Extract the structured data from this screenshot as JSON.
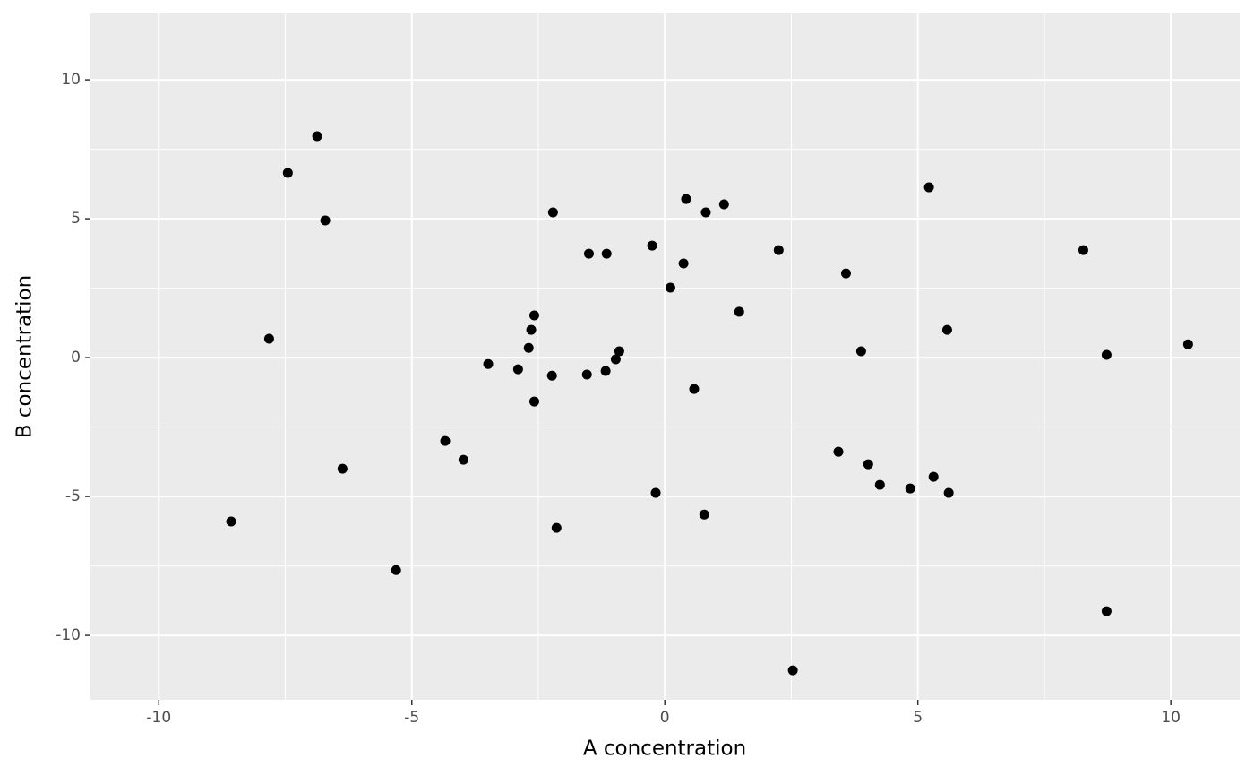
{
  "chart_data": {
    "type": "scatter",
    "x_label": "A concentration",
    "y_label": "B concentration",
    "x": [
      -6.87,
      -7.45,
      -6.71,
      -7.82,
      -8.57,
      -6.37,
      -5.31,
      -4.34,
      -3.98,
      -3.49,
      -2.9,
      -2.69,
      -2.64,
      -2.58,
      -2.58,
      -2.21,
      -2.23,
      -2.14,
      -1.54,
      -1.5,
      -1.15,
      -1.17,
      -0.97,
      -0.9,
      -0.25,
      -0.18,
      0.11,
      0.37,
      0.42,
      0.81,
      0.58,
      0.78,
      1.17,
      1.47,
      2.25,
      2.53,
      3.43,
      3.58,
      3.88,
      4.02,
      4.25,
      4.85,
      5.22,
      5.31,
      5.58,
      5.61,
      8.27,
      8.73,
      8.73,
      10.34
    ],
    "y": [
      7.97,
      6.65,
      4.94,
      0.68,
      -5.9,
      -4.0,
      -7.65,
      -3.0,
      -3.68,
      -0.23,
      -0.42,
      0.35,
      1.0,
      1.52,
      -1.58,
      5.23,
      -0.65,
      -6.13,
      -0.61,
      3.74,
      3.74,
      -0.48,
      -0.06,
      0.23,
      4.03,
      -4.87,
      2.52,
      3.39,
      5.71,
      5.23,
      -1.13,
      -5.65,
      5.52,
      1.65,
      3.87,
      -11.26,
      -3.39,
      3.03,
      0.23,
      -3.84,
      -4.58,
      -4.71,
      6.13,
      -4.29,
      1.0,
      -4.87,
      3.87,
      0.1,
      -9.13,
      0.48
    ],
    "color": "#000000",
    "xlim": [
      -11.35,
      11.36
    ],
    "ylim": [
      -12.32,
      12.39
    ],
    "xticks": [
      -10,
      -5,
      0,
      5,
      10
    ],
    "yticks": [
      -10,
      -5,
      0,
      5,
      10
    ],
    "x_minor_grid": [
      -7.5,
      -2.5,
      2.5,
      7.5
    ],
    "y_minor_grid": [
      -7.5,
      -2.5,
      2.5,
      7.5
    ],
    "grid": true
  }
}
